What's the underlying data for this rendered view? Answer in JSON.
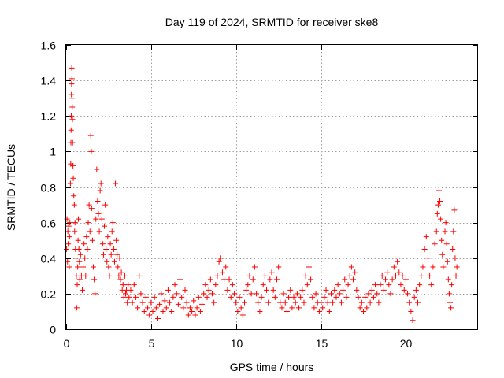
{
  "chart_data": {
    "type": "scatter",
    "title": "Day 119 of 2024, SRMTID for receiver ske8",
    "xlabel": "GPS time / hours",
    "ylabel": "SRMTID / TECUs",
    "xlim": [
      0,
      24.2
    ],
    "ylim": [
      0,
      1.6
    ],
    "xticks": [
      0,
      5,
      10,
      15,
      20
    ],
    "xtick_labels": [
      "0",
      "5",
      "10",
      "15",
      "20"
    ],
    "yticks": [
      0,
      0.2,
      0.4,
      0.6,
      0.8,
      1,
      1.2,
      1.4,
      1.6
    ],
    "ytick_labels": [
      "0",
      "0.2",
      "0.4",
      "0.6",
      "0.8",
      "1",
      "1.2",
      "1.4",
      "1.6"
    ],
    "grid": true,
    "marker": "+",
    "series": [
      {
        "name": "SRMTID",
        "color": "#ff0000",
        "points": [
          [
            0.02,
            0.45
          ],
          [
            0.05,
            0.62
          ],
          [
            0.08,
            0.38
          ],
          [
            0.1,
            0.55
          ],
          [
            0.12,
            0.48
          ],
          [
            0.15,
            0.58
          ],
          [
            0.18,
            0.35
          ],
          [
            0.2,
            0.52
          ],
          [
            0.22,
            0.6
          ],
          [
            0.25,
            0.82
          ],
          [
            0.27,
            0.93
          ],
          [
            0.28,
            1.05
          ],
          [
            0.29,
            1.12
          ],
          [
            0.3,
            1.2
          ],
          [
            0.31,
            1.32
          ],
          [
            0.32,
            1.38
          ],
          [
            0.33,
            1.47
          ],
          [
            0.34,
            1.41
          ],
          [
            0.35,
            1.3
          ],
          [
            0.36,
            1.25
          ],
          [
            0.37,
            1.18
          ],
          [
            0.38,
            1.05
          ],
          [
            0.4,
            0.92
          ],
          [
            0.42,
            0.85
          ],
          [
            0.45,
            0.75
          ],
          [
            0.48,
            0.7
          ],
          [
            0.5,
            0.55
          ],
          [
            0.52,
            0.6
          ],
          [
            0.55,
            0.45
          ],
          [
            0.58,
            0.4
          ],
          [
            0.6,
            0.3
          ],
          [
            0.62,
            0.12
          ],
          [
            0.65,
            0.25
          ],
          [
            0.68,
            0.35
          ],
          [
            0.7,
            0.5
          ],
          [
            0.72,
            0.62
          ],
          [
            0.75,
            0.45
          ],
          [
            0.78,
            0.38
          ],
          [
            0.8,
            0.28
          ],
          [
            0.85,
            0.42
          ],
          [
            0.9,
            0.3
          ],
          [
            0.95,
            0.22
          ],
          [
            1.0,
            0.35
          ],
          [
            1.05,
            0.48
          ],
          [
            1.1,
            0.4
          ],
          [
            1.15,
            0.3
          ],
          [
            1.2,
            0.52
          ],
          [
            1.25,
            0.45
          ],
          [
            1.3,
            0.6
          ],
          [
            1.35,
            0.7
          ],
          [
            1.4,
            0.55
          ],
          [
            1.45,
            1.09
          ],
          [
            1.48,
            1.0
          ],
          [
            1.5,
            0.68
          ],
          [
            1.55,
            0.5
          ],
          [
            1.6,
            0.35
          ],
          [
            1.65,
            0.28
          ],
          [
            1.7,
            0.2
          ],
          [
            1.75,
            0.62
          ],
          [
            1.8,
            0.9
          ],
          [
            1.85,
            0.72
          ],
          [
            1.9,
            0.65
          ],
          [
            1.95,
            0.55
          ],
          [
            2.0,
            0.78
          ],
          [
            2.05,
            0.82
          ],
          [
            2.1,
            0.62
          ],
          [
            2.15,
            0.48
          ],
          [
            2.2,
            0.42
          ],
          [
            2.25,
            0.58
          ],
          [
            2.3,
            0.7
          ],
          [
            2.35,
            0.45
          ],
          [
            2.4,
            0.38
          ],
          [
            2.45,
            0.52
          ],
          [
            2.5,
            0.35
          ],
          [
            2.55,
            0.3
          ],
          [
            2.6,
            0.48
          ],
          [
            2.65,
            0.42
          ],
          [
            2.7,
            0.55
          ],
          [
            2.75,
            0.6
          ],
          [
            2.8,
            0.45
          ],
          [
            2.85,
            0.38
          ],
          [
            2.9,
            0.82
          ],
          [
            2.95,
            0.5
          ],
          [
            3.0,
            0.42
          ],
          [
            3.05,
            0.35
          ],
          [
            3.1,
            0.3
          ],
          [
            3.15,
            0.4
          ],
          [
            3.2,
            0.28
          ],
          [
            3.25,
            0.32
          ],
          [
            3.3,
            0.22
          ],
          [
            3.35,
            0.25
          ],
          [
            3.4,
            0.18
          ],
          [
            3.45,
            0.3
          ],
          [
            3.5,
            0.2
          ],
          [
            3.55,
            0.22
          ],
          [
            3.6,
            0.15
          ],
          [
            3.65,
            0.25
          ],
          [
            3.7,
            0.18
          ],
          [
            3.8,
            0.22
          ],
          [
            3.9,
            0.15
          ],
          [
            4.0,
            0.25
          ],
          [
            4.1,
            0.18
          ],
          [
            4.2,
            0.12
          ],
          [
            4.3,
            0.3
          ],
          [
            4.4,
            0.2
          ],
          [
            4.5,
            0.15
          ],
          [
            4.6,
            0.1
          ],
          [
            4.7,
            0.18
          ],
          [
            4.8,
            0.12
          ],
          [
            4.9,
            0.08
          ],
          [
            5.0,
            0.15
          ],
          [
            5.1,
            0.1
          ],
          [
            5.2,
            0.18
          ],
          [
            5.3,
            0.12
          ],
          [
            5.4,
            0.06
          ],
          [
            5.5,
            0.14
          ],
          [
            5.6,
            0.2
          ],
          [
            5.7,
            0.1
          ],
          [
            5.8,
            0.16
          ],
          [
            5.9,
            0.12
          ],
          [
            6.0,
            0.22
          ],
          [
            6.1,
            0.15
          ],
          [
            6.2,
            0.1
          ],
          [
            6.3,
            0.18
          ],
          [
            6.4,
            0.25
          ],
          [
            6.5,
            0.2
          ],
          [
            6.6,
            0.14
          ],
          [
            6.7,
            0.28
          ],
          [
            6.8,
            0.18
          ],
          [
            6.9,
            0.12
          ],
          [
            7.0,
            0.22
          ],
          [
            7.1,
            0.15
          ],
          [
            7.2,
            0.08
          ],
          [
            7.3,
            0.12
          ],
          [
            7.4,
            0.1
          ],
          [
            7.5,
            0.16
          ],
          [
            7.6,
            0.08
          ],
          [
            7.7,
            0.12
          ],
          [
            7.8,
            0.18
          ],
          [
            7.9,
            0.1
          ],
          [
            8.0,
            0.14
          ],
          [
            8.1,
            0.2
          ],
          [
            8.2,
            0.25
          ],
          [
            8.3,
            0.18
          ],
          [
            8.4,
            0.22
          ],
          [
            8.5,
            0.28
          ],
          [
            8.6,
            0.2
          ],
          [
            8.7,
            0.15
          ],
          [
            8.8,
            0.25
          ],
          [
            8.9,
            0.3
          ],
          [
            9.0,
            0.38
          ],
          [
            9.1,
            0.4
          ],
          [
            9.2,
            0.32
          ],
          [
            9.3,
            0.28
          ],
          [
            9.4,
            0.35
          ],
          [
            9.5,
            0.22
          ],
          [
            9.6,
            0.28
          ],
          [
            9.7,
            0.18
          ],
          [
            9.8,
            0.25
          ],
          [
            9.9,
            0.2
          ],
          [
            10.0,
            0.15
          ],
          [
            10.1,
            0.1
          ],
          [
            10.2,
            0.18
          ],
          [
            10.3,
            0.12
          ],
          [
            10.4,
            0.08
          ],
          [
            10.5,
            0.15
          ],
          [
            10.6,
            0.22
          ],
          [
            10.7,
            0.25
          ],
          [
            10.8,
            0.3
          ],
          [
            10.9,
            0.2
          ],
          [
            11.0,
            0.28
          ],
          [
            11.1,
            0.35
          ],
          [
            11.2,
            0.2
          ],
          [
            11.3,
            0.15
          ],
          [
            11.4,
            0.1
          ],
          [
            11.5,
            0.18
          ],
          [
            11.6,
            0.25
          ],
          [
            11.7,
            0.3
          ],
          [
            11.8,
            0.22
          ],
          [
            11.9,
            0.15
          ],
          [
            12.0,
            0.28
          ],
          [
            12.1,
            0.32
          ],
          [
            12.2,
            0.22
          ],
          [
            12.3,
            0.18
          ],
          [
            12.4,
            0.28
          ],
          [
            12.5,
            0.35
          ],
          [
            12.6,
            0.15
          ],
          [
            12.7,
            0.12
          ],
          [
            12.8,
            0.2
          ],
          [
            12.9,
            0.15
          ],
          [
            13.0,
            0.1
          ],
          [
            13.1,
            0.18
          ],
          [
            13.2,
            0.22
          ],
          [
            13.3,
            0.12
          ],
          [
            13.4,
            0.18
          ],
          [
            13.5,
            0.15
          ],
          [
            13.6,
            0.2
          ],
          [
            13.7,
            0.12
          ],
          [
            13.8,
            0.18
          ],
          [
            13.9,
            0.22
          ],
          [
            14.0,
            0.15
          ],
          [
            14.1,
            0.3
          ],
          [
            14.2,
            0.25
          ],
          [
            14.3,
            0.35
          ],
          [
            14.4,
            0.28
          ],
          [
            14.5,
            0.18
          ],
          [
            14.6,
            0.12
          ],
          [
            14.7,
            0.2
          ],
          [
            14.8,
            0.15
          ],
          [
            14.9,
            0.1
          ],
          [
            15.0,
            0.15
          ],
          [
            15.1,
            0.12
          ],
          [
            15.2,
            0.18
          ],
          [
            15.3,
            0.22
          ],
          [
            15.4,
            0.15
          ],
          [
            15.5,
            0.1
          ],
          [
            15.6,
            0.2
          ],
          [
            15.7,
            0.15
          ],
          [
            15.8,
            0.22
          ],
          [
            15.9,
            0.18
          ],
          [
            16.0,
            0.25
          ],
          [
            16.1,
            0.2
          ],
          [
            16.2,
            0.15
          ],
          [
            16.3,
            0.22
          ],
          [
            16.4,
            0.28
          ],
          [
            16.5,
            0.18
          ],
          [
            16.6,
            0.25
          ],
          [
            16.7,
            0.3
          ],
          [
            16.8,
            0.35
          ],
          [
            16.9,
            0.28
          ],
          [
            17.0,
            0.32
          ],
          [
            17.1,
            0.22
          ],
          [
            17.2,
            0.18
          ],
          [
            17.3,
            0.12
          ],
          [
            17.4,
            0.15
          ],
          [
            17.5,
            0.1
          ],
          [
            17.6,
            0.18
          ],
          [
            17.7,
            0.12
          ],
          [
            17.8,
            0.2
          ],
          [
            17.9,
            0.15
          ],
          [
            18.0,
            0.22
          ],
          [
            18.1,
            0.18
          ],
          [
            18.2,
            0.25
          ],
          [
            18.3,
            0.2
          ],
          [
            18.4,
            0.15
          ],
          [
            18.5,
            0.25
          ],
          [
            18.6,
            0.3
          ],
          [
            18.7,
            0.22
          ],
          [
            18.8,
            0.28
          ],
          [
            18.9,
            0.32
          ],
          [
            19.0,
            0.25
          ],
          [
            19.1,
            0.2
          ],
          [
            19.2,
            0.28
          ],
          [
            19.3,
            0.35
          ],
          [
            19.4,
            0.3
          ],
          [
            19.5,
            0.38
          ],
          [
            19.6,
            0.32
          ],
          [
            19.7,
            0.25
          ],
          [
            19.8,
            0.3
          ],
          [
            19.9,
            0.22
          ],
          [
            20.0,
            0.28
          ],
          [
            20.1,
            0.2
          ],
          [
            20.2,
            0.15
          ],
          [
            20.3,
            0.1
          ],
          [
            20.4,
            0.05
          ],
          [
            20.5,
            0.18
          ],
          [
            20.6,
            0.22
          ],
          [
            20.7,
            0.15
          ],
          [
            20.8,
            0.25
          ],
          [
            20.9,
            0.3
          ],
          [
            21.0,
            0.35
          ],
          [
            21.1,
            0.45
          ],
          [
            21.2,
            0.52
          ],
          [
            21.3,
            0.4
          ],
          [
            21.4,
            0.3
          ],
          [
            21.5,
            0.25
          ],
          [
            21.6,
            0.35
          ],
          [
            21.7,
            0.48
          ],
          [
            21.8,
            0.55
          ],
          [
            21.85,
            0.65
          ],
          [
            21.9,
            0.7
          ],
          [
            21.95,
            0.78
          ],
          [
            22.0,
            0.72
          ],
          [
            22.05,
            0.62
          ],
          [
            22.1,
            0.5
          ],
          [
            22.15,
            0.42
          ],
          [
            22.2,
            0.35
          ],
          [
            22.3,
            0.55
          ],
          [
            22.35,
            0.6
          ],
          [
            22.4,
            0.48
          ],
          [
            22.45,
            0.38
          ],
          [
            22.5,
            0.28
          ],
          [
            22.55,
            0.2
          ],
          [
            22.6,
            0.15
          ],
          [
            22.65,
            0.12
          ],
          [
            22.7,
            0.25
          ],
          [
            22.75,
            0.45
          ],
          [
            22.8,
            0.55
          ],
          [
            22.85,
            0.67
          ],
          [
            22.9,
            0.4
          ],
          [
            22.95,
            0.3
          ],
          [
            23.0,
            0.35
          ]
        ]
      }
    ]
  }
}
